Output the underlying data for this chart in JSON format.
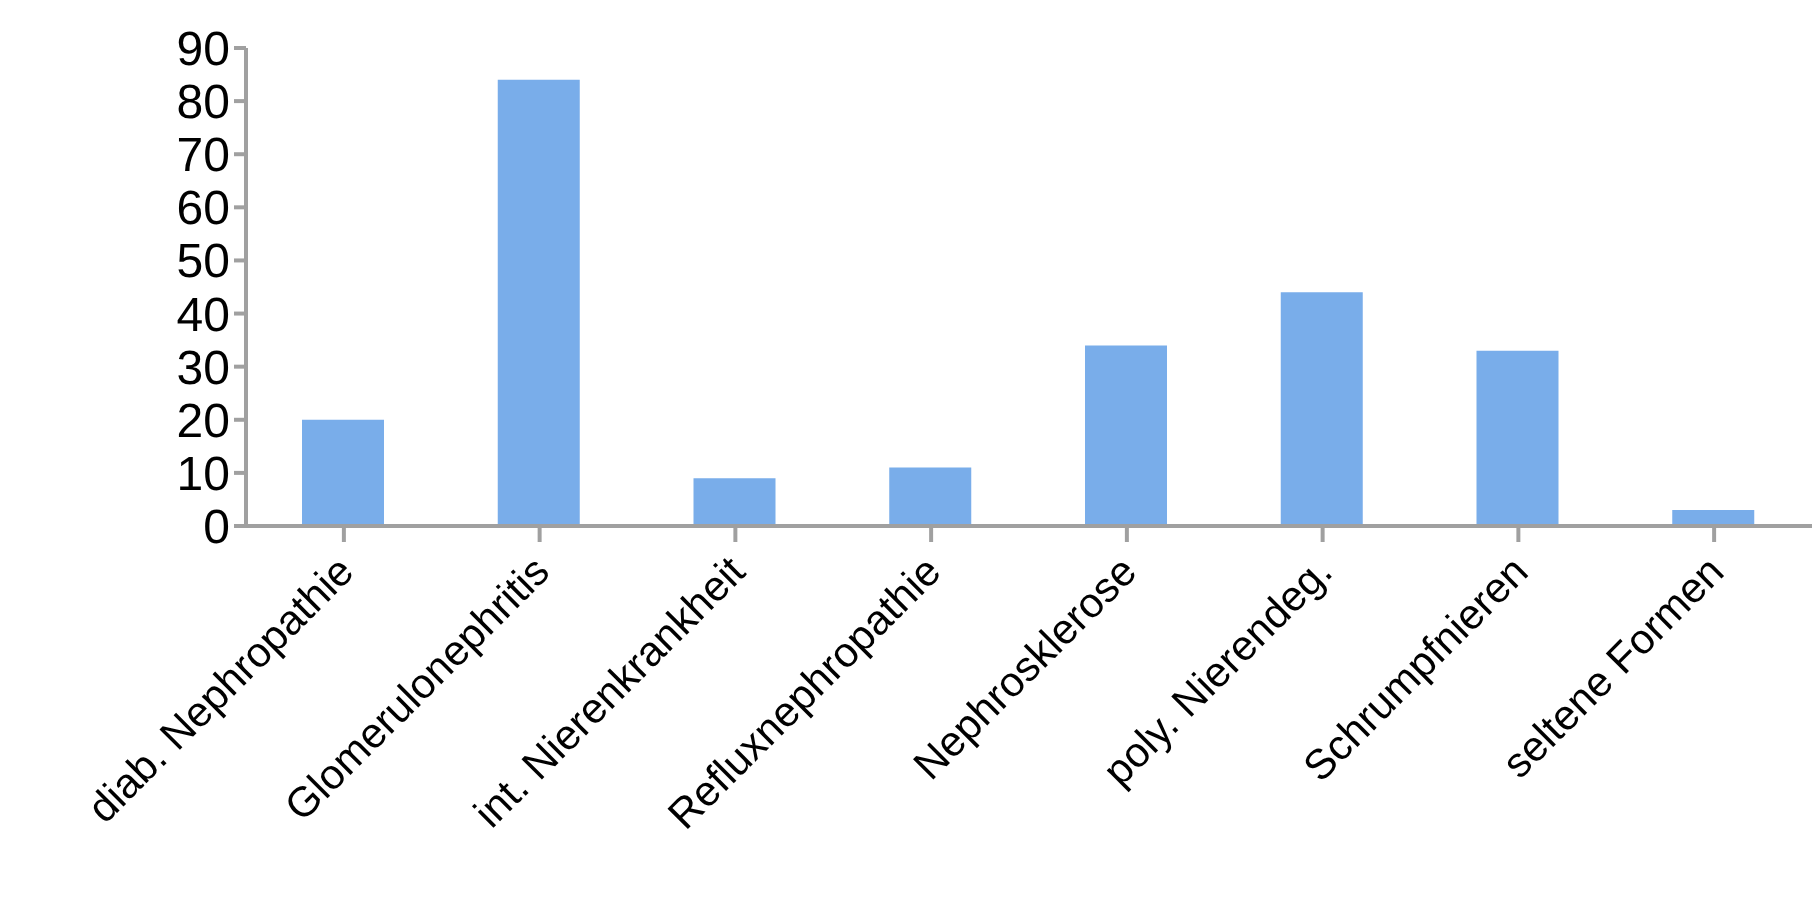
{
  "chart_data": {
    "type": "bar",
    "categories": [
      "diab. Nephropathie",
      "Glomerulonephritis",
      "int. Nierenkrankheit",
      "Refluxnephropathie",
      "Nephrosklerose",
      "poly. Nierendeg.",
      "Schrumpfnieren",
      "seltene Formen"
    ],
    "values": [
      20,
      84,
      9,
      11,
      34,
      44,
      33,
      3
    ],
    "color": "#79adea",
    "ylim": [
      0,
      90
    ],
    "yticks": [
      0,
      10,
      20,
      30,
      40,
      50,
      60,
      70,
      80,
      90
    ],
    "grid": false,
    "legend": false
  }
}
